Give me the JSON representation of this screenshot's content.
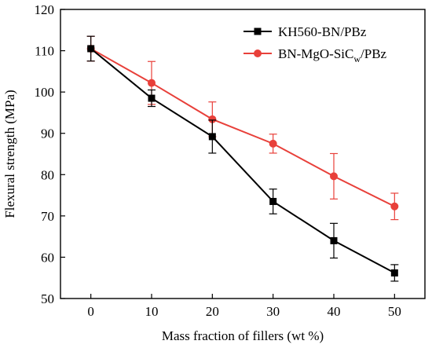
{
  "chart_data": {
    "type": "line",
    "title": "",
    "xlabel": "Mass fraction of fillers (wt %)",
    "ylabel": "Flexural strength (MPa)",
    "xlim": [
      -5,
      55
    ],
    "ylim": [
      50,
      120
    ],
    "x_ticks": [
      0,
      10,
      20,
      30,
      40,
      50
    ],
    "y_ticks": [
      50,
      60,
      70,
      80,
      90,
      100,
      110,
      120
    ],
    "grid": false,
    "legend_position": "top-right",
    "x": [
      0,
      10,
      20,
      30,
      40,
      50
    ],
    "series": [
      {
        "name": "KH560-BN/PBz",
        "name_main": "KH560-BN/PBz",
        "name_sub": "",
        "name_tail": "",
        "color": "#000000",
        "marker": "square",
        "values": [
          110.5,
          98.5,
          89.2,
          73.5,
          64.0,
          56.2
        ],
        "errors": [
          3.0,
          2.0,
          4.0,
          3.0,
          4.2,
          2.0
        ]
      },
      {
        "name": "BN-MgO-SiCw/PBz",
        "name_main": "BN-MgO-SiC",
        "name_sub": "w",
        "name_tail": "/PBz",
        "color": "#e8403a",
        "marker": "circle",
        "values": [
          110.5,
          102.2,
          93.4,
          87.5,
          79.6,
          72.3
        ],
        "errors": [
          3.0,
          5.2,
          4.2,
          2.3,
          5.5,
          3.2
        ]
      }
    ]
  }
}
